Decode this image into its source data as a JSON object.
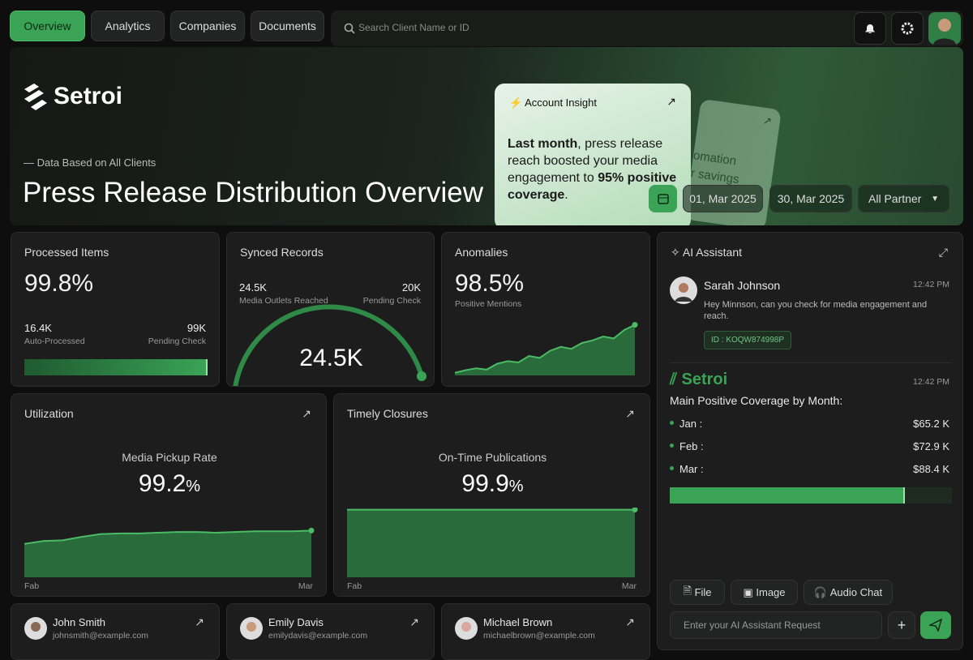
{
  "nav": {
    "tabs": [
      "Overview",
      "Analytics",
      "Companies",
      "Documents"
    ],
    "search_placeholder": "Search Client Name or ID"
  },
  "hero": {
    "brand": "Setroi",
    "kicker": "— Data Based on All Clients",
    "title": "Press Release Distribution Overview",
    "insight": {
      "heading": "Account Insight",
      "parts": [
        "Last month",
        ", press release reach boosted your media engagement to ",
        "95% positive coverage",
        "."
      ]
    },
    "back_card_lines": [
      "omation",
      "r savings"
    ],
    "filters": {
      "start": "01, Mar 2025",
      "end": "30, Mar 2025",
      "partner": "All Partner"
    }
  },
  "processed": {
    "title": "Processed Items",
    "value": "99.8%",
    "left_value": "16.4K",
    "left_label": "Auto-Processed",
    "right_value": "99K",
    "right_label": "Pending Check"
  },
  "synced": {
    "title": "Synced Records",
    "left_value": "24.5K",
    "left_label": "Media Outlets Reached",
    "right_value": "20K",
    "right_label": "Pending Check",
    "gauge_value": "24.5K"
  },
  "anomalies": {
    "title": "Anomalies",
    "value": "98.5%",
    "label": "Positive Mentions",
    "chart": {
      "values": [
        4,
        8,
        11,
        9,
        18,
        22,
        20,
        30,
        27,
        38,
        44,
        41,
        50,
        54,
        60,
        57,
        70,
        78
      ],
      "ylim": [
        0,
        100
      ]
    }
  },
  "utilization": {
    "title": "Utilization",
    "label": "Media Pickup Rate",
    "value": "99.2",
    "unit": "%",
    "x_start": "Fab",
    "x_end": "Mar",
    "chart": {
      "values": [
        48,
        52,
        53,
        58,
        62,
        63,
        63,
        64,
        65,
        65,
        64,
        65,
        66,
        66,
        66,
        67
      ],
      "ylim": [
        0,
        100
      ]
    }
  },
  "timely": {
    "title": "Timely Closures",
    "label": "On-Time Publications",
    "value": "99.9",
    "unit": "%",
    "x_start": "Fab",
    "x_end": "Mar",
    "chart": {
      "values": [
        97,
        97,
        97,
        97,
        97,
        97,
        97,
        97,
        97,
        97,
        97,
        97
      ],
      "ylim": [
        0,
        100
      ]
    }
  },
  "assistant": {
    "title": "AI Assistant",
    "message": {
      "name": "Sarah Johnson",
      "time": "12:42 PM",
      "text": "Hey Minnson, can you check for media engagement and reach.",
      "id": "ID : KOQW874998P"
    },
    "reply": {
      "brand": "Setroi",
      "time": "12:42 PM",
      "heading": "Main Positive Coverage by Month:",
      "items": [
        {
          "label": "Jan :",
          "value": "$65.2 K"
        },
        {
          "label": "Feb :",
          "value": "$72.9 K"
        },
        {
          "label": "Mar :",
          "value": "$88.4 K"
        }
      ]
    },
    "buttons": [
      "File",
      "Image",
      "Audio Chat"
    ],
    "input_placeholder": "Enter your AI Assistant Request"
  },
  "people": [
    {
      "name": "John Smith",
      "email": "johnsmith@example.com"
    },
    {
      "name": "Emily Davis",
      "email": "emilydavis@example.com"
    },
    {
      "name": "Michael Brown",
      "email": "michaelbrown@example.com"
    }
  ]
}
